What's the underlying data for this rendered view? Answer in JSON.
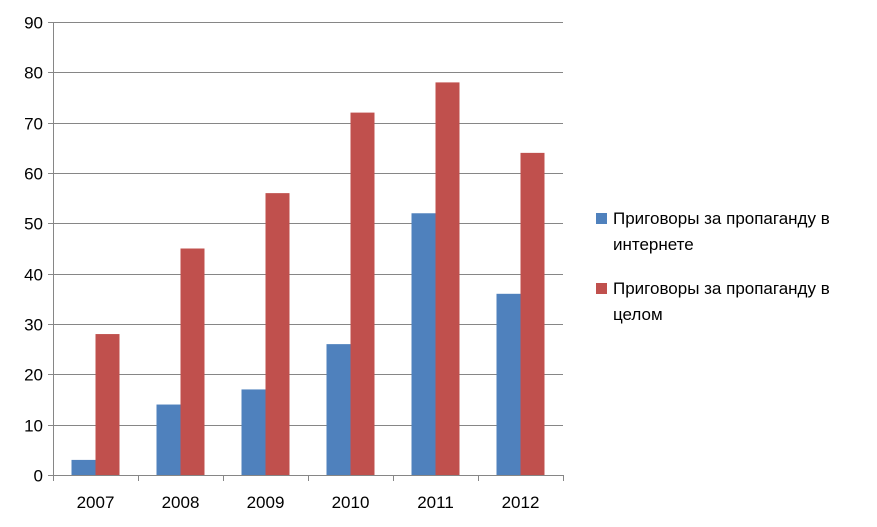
{
  "chart_data": {
    "type": "bar",
    "categories": [
      "2007",
      "2008",
      "2009",
      "2010",
      "2011",
      "2012"
    ],
    "series": [
      {
        "name": "Приговоры за пропаганду в интернете",
        "color": "#4f81bd",
        "values": [
          3,
          14,
          17,
          26,
          52,
          36
        ]
      },
      {
        "name": "Приговоры за пропаганду в целом",
        "color": "#c0504d",
        "values": [
          28,
          45,
          56,
          72,
          78,
          64
        ]
      }
    ],
    "title": "",
    "xlabel": "",
    "ylabel": "",
    "ylim": [
      0,
      90
    ],
    "yticks": [
      "0",
      "10",
      "20",
      "30",
      "40",
      "50",
      "60",
      "70",
      "80",
      "90"
    ],
    "grid": true,
    "legend_position": "right"
  }
}
